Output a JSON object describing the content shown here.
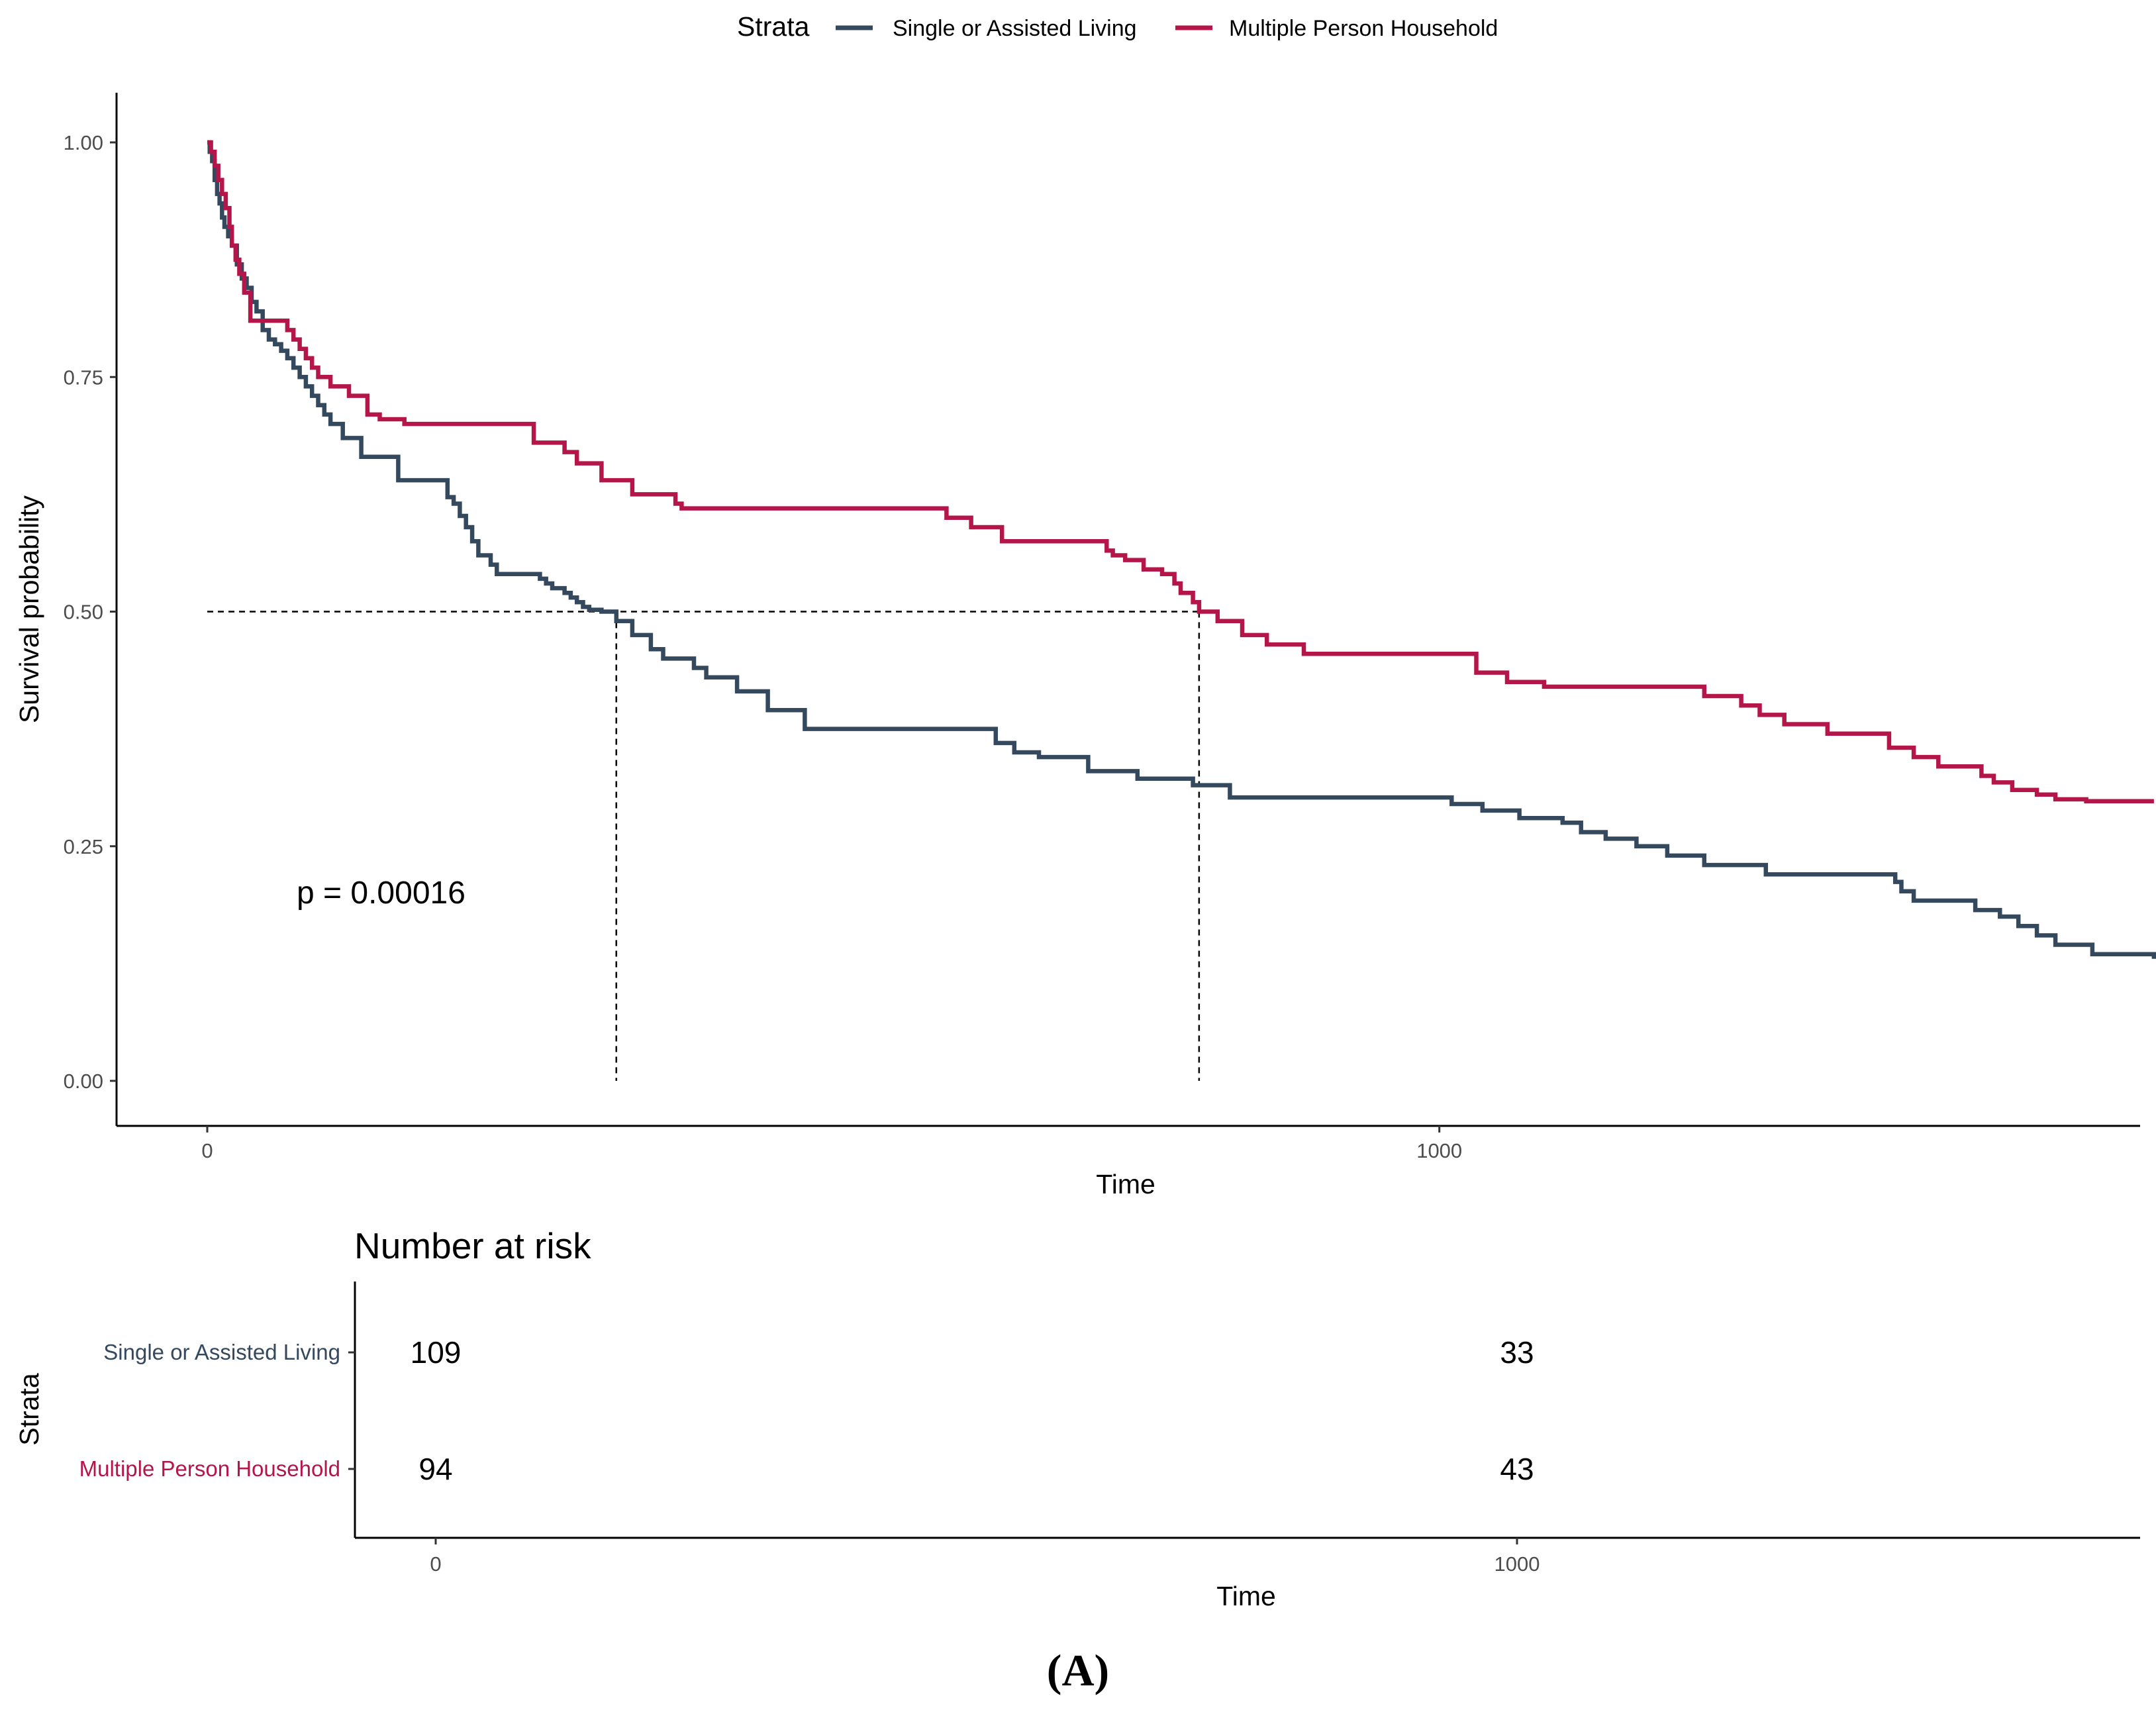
{
  "chart_data": {
    "type": "line",
    "subtype": "kaplan-meier step",
    "title": "",
    "xlabel": "Time",
    "ylabel": "Survival probability",
    "xlim": [
      -75,
      1580
    ],
    "ylim": [
      -0.05,
      1.05
    ],
    "xticks": [
      0,
      1000
    ],
    "yticks": [
      0.0,
      0.25,
      0.5,
      0.75,
      1.0
    ],
    "ytick_labels": [
      "0.00",
      "0.25",
      "0.50",
      "0.75",
      "1.00"
    ],
    "xtick_labels": [
      "0",
      "1000"
    ],
    "legend": {
      "title": "Strata",
      "placement": "top"
    },
    "annotation": "p = 0.00016",
    "median_survival": {
      "y": 0.5,
      "x_values": [
        332,
        805
      ]
    },
    "series": [
      {
        "name": "Single or Assisted Living",
        "color": "#34495e",
        "x": [
          0,
          2,
          4,
          6,
          8,
          10,
          12,
          14,
          17,
          20,
          24,
          28,
          32,
          36,
          40,
          45,
          50,
          55,
          60,
          65,
          70,
          75,
          80,
          85,
          90,
          95,
          100,
          110,
          125,
          155,
          195,
          200,
          205,
          210,
          215,
          220,
          230,
          235,
          240,
          255,
          270,
          275,
          280,
          290,
          295,
          300,
          305,
          310,
          320,
          332,
          345,
          360,
          370,
          395,
          405,
          430,
          455,
          485,
          640,
          655,
          675,
          715,
          755,
          800,
          830,
          1010,
          1035,
          1065,
          1100,
          1115,
          1135,
          1160,
          1185,
          1215,
          1265,
          1370,
          1375,
          1385,
          1435,
          1455,
          1470,
          1485,
          1500,
          1530,
          1580
        ],
        "y": [
          1.0,
          0.99,
          0.98,
          0.96,
          0.945,
          0.935,
          0.92,
          0.91,
          0.9,
          0.89,
          0.87,
          0.855,
          0.845,
          0.83,
          0.82,
          0.8,
          0.79,
          0.785,
          0.778,
          0.77,
          0.76,
          0.75,
          0.74,
          0.73,
          0.72,
          0.71,
          0.7,
          0.685,
          0.665,
          0.64,
          0.622,
          0.615,
          0.602,
          0.59,
          0.575,
          0.56,
          0.55,
          0.54,
          0.54,
          0.54,
          0.535,
          0.53,
          0.525,
          0.52,
          0.515,
          0.51,
          0.505,
          0.502,
          0.5,
          0.49,
          0.475,
          0.46,
          0.45,
          0.44,
          0.43,
          0.415,
          0.395,
          0.375,
          0.36,
          0.35,
          0.345,
          0.33,
          0.322,
          0.315,
          0.302,
          0.295,
          0.288,
          0.28,
          0.275,
          0.265,
          0.258,
          0.25,
          0.24,
          0.23,
          0.22,
          0.212,
          0.202,
          0.192,
          0.182,
          0.175,
          0.165,
          0.155,
          0.145,
          0.135,
          0.13
        ]
      },
      {
        "name": "Multiple Person Household",
        "color": "#b5164a",
        "x": [
          0,
          3,
          6,
          9,
          12,
          15,
          18,
          20,
          23,
          26,
          30,
          35,
          60,
          65,
          70,
          75,
          80,
          85,
          90,
          100,
          115,
          130,
          140,
          160,
          265,
          290,
          300,
          320,
          345,
          380,
          385,
          600,
          620,
          645,
          730,
          735,
          745,
          760,
          775,
          785,
          790,
          800,
          805,
          820,
          840,
          860,
          890,
          1030,
          1055,
          1085,
          1215,
          1245,
          1260,
          1280,
          1315,
          1365,
          1385,
          1405,
          1440,
          1450,
          1465,
          1485,
          1500,
          1525,
          1580
        ],
        "y": [
          1.0,
          0.99,
          0.975,
          0.96,
          0.945,
          0.93,
          0.91,
          0.89,
          0.875,
          0.86,
          0.84,
          0.81,
          0.81,
          0.8,
          0.79,
          0.78,
          0.77,
          0.76,
          0.75,
          0.74,
          0.73,
          0.71,
          0.705,
          0.7,
          0.68,
          0.67,
          0.658,
          0.64,
          0.625,
          0.615,
          0.61,
          0.6,
          0.59,
          0.575,
          0.565,
          0.56,
          0.555,
          0.545,
          0.54,
          0.53,
          0.52,
          0.51,
          0.5,
          0.49,
          0.475,
          0.465,
          0.455,
          0.435,
          0.425,
          0.42,
          0.41,
          0.4,
          0.39,
          0.38,
          0.37,
          0.355,
          0.345,
          0.335,
          0.325,
          0.318,
          0.31,
          0.305,
          0.3,
          0.298,
          0.298
        ]
      }
    ],
    "risk_table": {
      "title": "Number at risk",
      "ylabel": "Strata",
      "xlabel": "Time",
      "time_points": [
        0,
        1000
      ],
      "time_labels": [
        "0",
        "1000"
      ],
      "rows": [
        {
          "name": "Single or Assisted Living",
          "color": "#34495e",
          "counts": [
            "109",
            "33"
          ]
        },
        {
          "name": "Multiple Person Household",
          "color": "#b5164a",
          "counts": [
            "94",
            "43"
          ]
        }
      ]
    }
  },
  "caption": "(A)"
}
